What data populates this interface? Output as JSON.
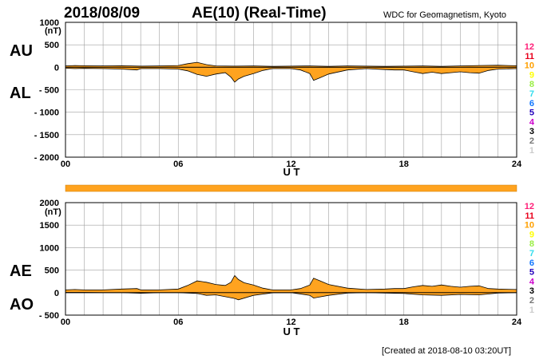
{
  "header": {
    "date": "2018/08/09",
    "title": "AE(10) (Real-Time)",
    "source": "WDC for Geomagnetism, Kyoto"
  },
  "footer": {
    "created": "[Created at 2018-08-10 03:20UT]"
  },
  "colors": {
    "fill": "#ffa31f",
    "line": "#000000",
    "grid": "#a0a0a0"
  },
  "station_numbers": [
    {
      "label": "12",
      "color": "#ff1e78"
    },
    {
      "label": "11",
      "color": "#e8001c"
    },
    {
      "label": "10",
      "color": "#ffa000"
    },
    {
      "label": "9",
      "color": "#ffff00"
    },
    {
      "label": "8",
      "color": "#99ee44"
    },
    {
      "label": "7",
      "color": "#33ddee"
    },
    {
      "label": "6",
      "color": "#1177ff"
    },
    {
      "label": "5",
      "color": "#2200bb"
    },
    {
      "label": "4",
      "color": "#cc00cc"
    },
    {
      "label": "3",
      "color": "#000000"
    },
    {
      "label": "2",
      "color": "#777777"
    },
    {
      "label": "1",
      "color": "#cccccc"
    }
  ],
  "chart_data": [
    {
      "type": "area",
      "panel": "AU/AL",
      "labels": {
        "upper": "AU",
        "lower": "AL"
      },
      "unit": "(nT)",
      "xlabel": "U T",
      "xlim": [
        0,
        24
      ],
      "xticks": [
        "00",
        "06",
        "12",
        "18",
        "24"
      ],
      "ylim": [
        -2000,
        1000
      ],
      "yticks": [
        "1000",
        "500",
        "0",
        "- 500",
        "- 1000",
        "- 1500",
        "- 2000"
      ],
      "grid": true,
      "series": [
        {
          "name": "AU",
          "x": [
            0,
            0.5,
            1,
            2,
            3,
            4,
            5,
            6,
            6.5,
            7,
            7.5,
            8,
            9,
            10,
            11,
            12,
            13,
            14,
            15,
            16,
            17,
            18,
            19,
            20,
            20.5,
            21,
            22,
            23,
            24
          ],
          "values": [
            30,
            40,
            35,
            30,
            35,
            25,
            30,
            40,
            80,
            110,
            60,
            30,
            25,
            30,
            20,
            25,
            30,
            20,
            30,
            25,
            20,
            25,
            30,
            20,
            25,
            30,
            40,
            45,
            35
          ]
        },
        {
          "name": "AL",
          "x": [
            0,
            0.5,
            1,
            2,
            3,
            3.8,
            4,
            5,
            6,
            6.5,
            7,
            7.5,
            8,
            8.5,
            8.8,
            9,
            9.2,
            9.5,
            10,
            10.5,
            11,
            12,
            12.5,
            13,
            13.2,
            13.5,
            14,
            15,
            16,
            17,
            17.5,
            18,
            18.5,
            19,
            19.5,
            20,
            20.5,
            21,
            21.5,
            22,
            22.5,
            23,
            24
          ],
          "values": [
            -20,
            -30,
            -25,
            -30,
            -40,
            -60,
            -30,
            -30,
            -40,
            -80,
            -160,
            -200,
            -150,
            -120,
            -220,
            -330,
            -260,
            -200,
            -140,
            -70,
            -30,
            -30,
            -60,
            -140,
            -290,
            -240,
            -150,
            -60,
            -30,
            -50,
            -60,
            -60,
            -100,
            -140,
            -110,
            -140,
            -120,
            -100,
            -120,
            -130,
            -70,
            -40,
            -30
          ]
        }
      ]
    },
    {
      "type": "area",
      "panel": "AE/AO",
      "labels": {
        "upper": "AE",
        "lower": "AO"
      },
      "unit": "(nT)",
      "xlabel": "U T",
      "xlim": [
        0,
        24
      ],
      "xticks": [
        "00",
        "06",
        "12",
        "18",
        "24"
      ],
      "ylim": [
        -500,
        2000
      ],
      "yticks": [
        "2000",
        "1500",
        "1000",
        "500",
        "0",
        "- 500"
      ],
      "grid": true,
      "series": [
        {
          "name": "AE",
          "x": [
            0,
            0.5,
            1,
            2,
            3,
            3.8,
            4,
            5,
            6,
            6.5,
            7,
            7.5,
            8,
            8.5,
            8.8,
            9,
            9.2,
            9.5,
            10,
            10.5,
            11,
            12,
            12.5,
            13,
            13.2,
            13.5,
            14,
            15,
            16,
            17,
            17.5,
            18,
            18.5,
            19,
            19.5,
            20,
            20.5,
            21,
            21.5,
            22,
            22.5,
            23,
            24
          ],
          "values": [
            60,
            70,
            60,
            60,
            80,
            90,
            60,
            60,
            80,
            160,
            260,
            230,
            180,
            160,
            230,
            380,
            290,
            220,
            170,
            100,
            60,
            60,
            90,
            170,
            320,
            270,
            180,
            100,
            70,
            80,
            90,
            90,
            130,
            160,
            140,
            170,
            140,
            120,
            140,
            150,
            90,
            80,
            70
          ]
        },
        {
          "name": "AO",
          "x": [
            0,
            1,
            2,
            3,
            4,
            5,
            6,
            7,
            7.5,
            8,
            9,
            9.2,
            10,
            11,
            12,
            13,
            13.2,
            14,
            15,
            16,
            17,
            18,
            19,
            20,
            21,
            22,
            23,
            24
          ],
          "values": [
            5,
            5,
            0,
            0,
            -15,
            0,
            0,
            -20,
            -60,
            -50,
            -130,
            -160,
            -60,
            -5,
            0,
            -60,
            -120,
            -60,
            -10,
            0,
            -10,
            -20,
            -50,
            -60,
            -40,
            -50,
            -10,
            0
          ]
        }
      ]
    }
  ]
}
